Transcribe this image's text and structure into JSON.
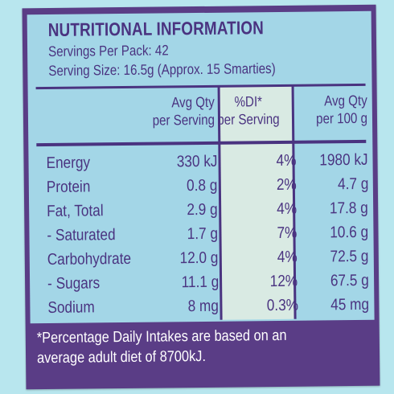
{
  "panel": {
    "title": "NUTRITIONAL INFORMATION",
    "servings_per_pack": "Servings Per Pack: 42",
    "serving_size": "Serving Size: 16.5g (Approx. 15 Smarties)"
  },
  "table": {
    "headers": [
      "Avg Qty\nper Serving",
      "%DI*\nper Serving",
      "Avg Qty\nper 100 g"
    ],
    "rows": [
      {
        "name": "Energy",
        "per_serving": "330 kJ",
        "di": "4%",
        "per_100g": "1980 kJ"
      },
      {
        "name": "Protein",
        "per_serving": "0.8 g",
        "di": "2%",
        "per_100g": "4.7 g"
      },
      {
        "name": "Fat, Total",
        "per_serving": "2.9 g",
        "di": "4%",
        "per_100g": "17.8 g"
      },
      {
        "name": " - Saturated",
        "per_serving": "1.7 g",
        "di": "7%",
        "per_100g": "10.6 g"
      },
      {
        "name": "Carbohydrate",
        "per_serving": "12.0 g",
        "di": "4%",
        "per_100g": "72.5 g"
      },
      {
        "name": " - Sugars",
        "per_serving": "11.1 g",
        "di": "12%",
        "per_100g": "67.5 g"
      },
      {
        "name": "Sodium",
        "per_serving": "8 mg",
        "di": "0.3%",
        "per_100g": "45 mg"
      }
    ]
  },
  "footnote": "*Percentage Daily Intakes are based on an average adult diet of 8700kJ.",
  "colors": {
    "background": "#b8e6ee",
    "panel_purple": "#5a3d86",
    "inner_blue": "#a3d6e7",
    "di_column": "#d9eae3",
    "text": "#4a3380"
  }
}
